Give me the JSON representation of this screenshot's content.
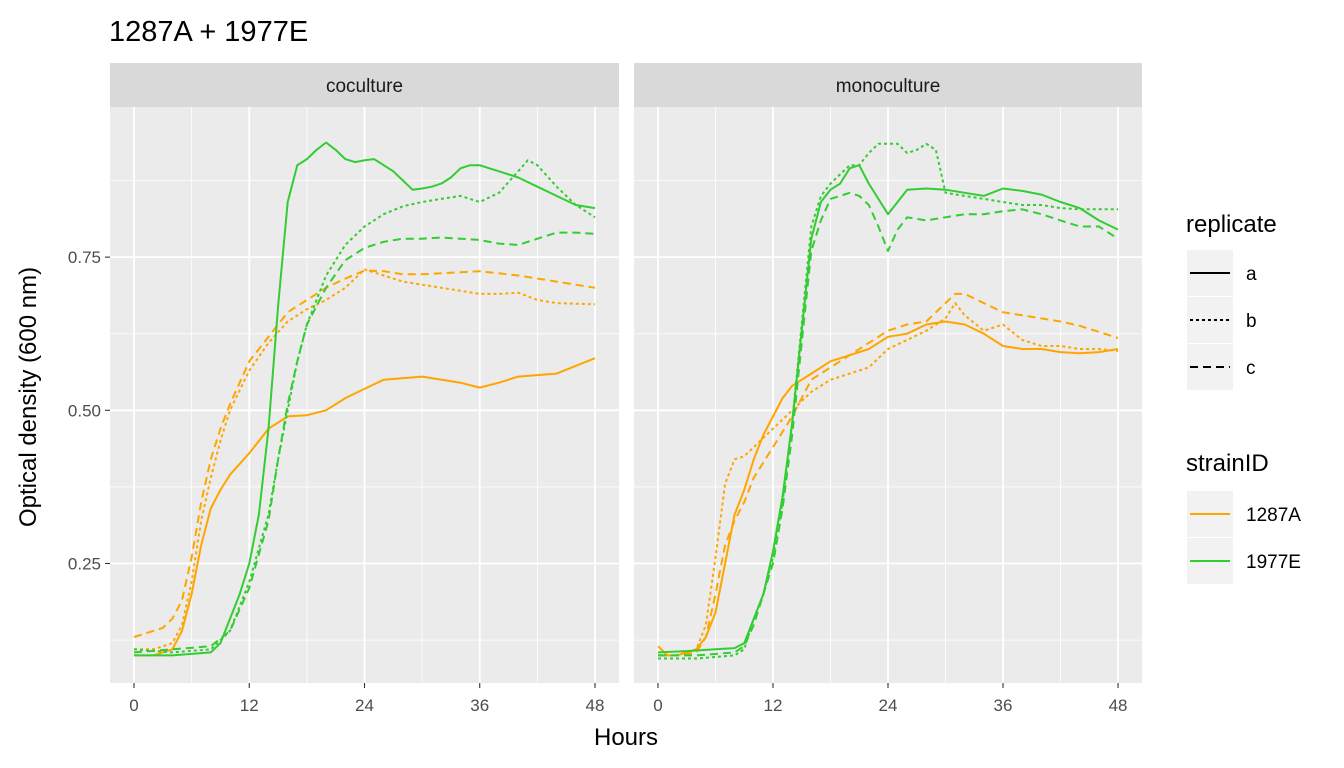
{
  "chart_data": {
    "type": "line",
    "title": "1287A + 1977E",
    "xlabel": "Hours",
    "ylabel": "Optical density (600 nm)",
    "xlim": [
      -2.5,
      50.5
    ],
    "ylim": [
      0.055,
      0.995
    ],
    "x_ticks": [
      0,
      12,
      24,
      36,
      48
    ],
    "x_tick_labels": [
      "0",
      "12",
      "24",
      "36",
      "48"
    ],
    "y_ticks": [
      0.25,
      0.5,
      0.75
    ],
    "y_tick_labels": [
      "0.25",
      "0.50",
      "0.75"
    ],
    "grid": true,
    "legend_position": "right",
    "legends": {
      "replicate": {
        "title": "replicate",
        "entries": [
          {
            "label": "a",
            "dash": "solid"
          },
          {
            "label": "b",
            "dash": "dotted"
          },
          {
            "label": "c",
            "dash": "dashed"
          }
        ]
      },
      "strainID": {
        "title": "strainID",
        "entries": [
          {
            "label": "1287A",
            "color": "#FFA500"
          },
          {
            "label": "1977E",
            "color": "#32CD32"
          }
        ]
      }
    },
    "panels": [
      {
        "strip": "coculture",
        "series": [
          {
            "strain": "1287A",
            "replicate": "a",
            "x": [
              0,
              2,
              4,
              5,
              6,
              7,
              8,
              9,
              10,
              12,
              14,
              16,
              18,
              20,
              22,
              24,
              26,
              30,
              34,
              36,
              38,
              40,
              44,
              48
            ],
            "y": [
              0.1,
              0.1,
              0.11,
              0.14,
              0.2,
              0.28,
              0.34,
              0.37,
              0.395,
              0.43,
              0.47,
              0.49,
              0.492,
              0.5,
              0.52,
              0.535,
              0.55,
              0.555,
              0.545,
              0.537,
              0.545,
              0.555,
              0.56,
              0.585
            ]
          },
          {
            "strain": "1287A",
            "replicate": "b",
            "x": [
              0,
              2,
              4,
              5,
              6,
              7,
              8,
              9,
              10,
              12,
              14,
              16,
              18,
              20,
              22,
              24,
              26,
              28,
              30,
              32,
              34,
              36,
              38,
              40,
              42,
              44,
              48
            ],
            "y": [
              0.11,
              0.11,
              0.12,
              0.15,
              0.22,
              0.32,
              0.39,
              0.45,
              0.5,
              0.565,
              0.61,
              0.645,
              0.665,
              0.68,
              0.7,
              0.73,
              0.72,
              0.71,
              0.705,
              0.7,
              0.695,
              0.69,
              0.69,
              0.692,
              0.68,
              0.675,
              0.673
            ]
          },
          {
            "strain": "1287A",
            "replicate": "c",
            "x": [
              0,
              1,
              3,
              4,
              5,
              6,
              7,
              8,
              9,
              10,
              12,
              14,
              16,
              18,
              20,
              22,
              24,
              26,
              28,
              30,
              36,
              40,
              44,
              48
            ],
            "y": [
              0.13,
              0.135,
              0.145,
              0.16,
              0.19,
              0.26,
              0.35,
              0.42,
              0.47,
              0.51,
              0.58,
              0.62,
              0.66,
              0.68,
              0.7,
              0.715,
              0.728,
              0.727,
              0.722,
              0.722,
              0.727,
              0.72,
              0.71,
              0.7
            ]
          },
          {
            "strain": "1977E",
            "replicate": "a",
            "x": [
              0,
              4,
              8,
              9,
              10,
              11,
              12,
              13,
              14,
              15,
              16,
              17,
              18,
              19,
              20,
              21,
              22,
              23,
              24,
              25,
              26,
              27,
              28,
              29,
              30,
              31,
              32,
              33,
              34,
              35,
              36,
              37,
              38,
              40,
              42,
              44,
              46,
              48
            ],
            "y": [
              0.1,
              0.1,
              0.105,
              0.12,
              0.16,
              0.2,
              0.25,
              0.33,
              0.47,
              0.67,
              0.84,
              0.9,
              0.91,
              0.925,
              0.937,
              0.925,
              0.91,
              0.905,
              0.908,
              0.91,
              0.9,
              0.89,
              0.875,
              0.86,
              0.862,
              0.865,
              0.87,
              0.88,
              0.895,
              0.9,
              0.9,
              0.895,
              0.89,
              0.88,
              0.865,
              0.85,
              0.835,
              0.83
            ]
          },
          {
            "strain": "1977E",
            "replicate": "b",
            "x": [
              0,
              4,
              8,
              10,
              12,
              14,
              15,
              16,
              17,
              18,
              20,
              22,
              24,
              26,
              28,
              30,
              32,
              34,
              36,
              38,
              40,
              41,
              42,
              44,
              46,
              48
            ],
            "y": [
              0.11,
              0.105,
              0.11,
              0.14,
              0.22,
              0.33,
              0.42,
              0.5,
              0.58,
              0.64,
              0.72,
              0.77,
              0.8,
              0.82,
              0.833,
              0.84,
              0.845,
              0.85,
              0.84,
              0.855,
              0.89,
              0.908,
              0.9,
              0.865,
              0.835,
              0.815
            ]
          },
          {
            "strain": "1977E",
            "replicate": "c",
            "x": [
              0,
              4,
              8,
              10,
              12,
              14,
              15,
              16,
              17,
              18,
              20,
              22,
              24,
              26,
              28,
              30,
              32,
              34,
              36,
              38,
              40,
              42,
              44,
              46,
              48
            ],
            "y": [
              0.105,
              0.11,
              0.115,
              0.14,
              0.21,
              0.32,
              0.42,
              0.51,
              0.58,
              0.64,
              0.7,
              0.745,
              0.765,
              0.775,
              0.78,
              0.78,
              0.782,
              0.78,
              0.778,
              0.772,
              0.77,
              0.78,
              0.79,
              0.79,
              0.788
            ]
          }
        ]
      },
      {
        "strip": "monoculture",
        "series": [
          {
            "strain": "1287A",
            "replicate": "a",
            "x": [
              0,
              1,
              2,
              3,
              4,
              5,
              6,
              7,
              8,
              9,
              10,
              11,
              12,
              13,
              14,
              16,
              18,
              20,
              22,
              24,
              26,
              28,
              30,
              32,
              34,
              36,
              38,
              40,
              42,
              44,
              46,
              48
            ],
            "y": [
              0.115,
              0.1,
              0.1,
              0.105,
              0.11,
              0.13,
              0.17,
              0.25,
              0.33,
              0.37,
              0.42,
              0.46,
              0.49,
              0.52,
              0.54,
              0.56,
              0.58,
              0.59,
              0.6,
              0.62,
              0.625,
              0.64,
              0.645,
              0.64,
              0.625,
              0.605,
              0.6,
              0.6,
              0.595,
              0.593,
              0.595,
              0.6
            ]
          },
          {
            "strain": "1287A",
            "replicate": "b",
            "x": [
              0,
              2,
              4,
              5,
              6,
              7,
              8,
              9,
              10,
              12,
              14,
              16,
              18,
              20,
              22,
              24,
              26,
              28,
              30,
              31,
              32,
              34,
              36,
              38,
              40,
              42,
              44,
              46,
              48
            ],
            "y": [
              0.1,
              0.1,
              0.11,
              0.15,
              0.26,
              0.38,
              0.42,
              0.425,
              0.44,
              0.47,
              0.5,
              0.53,
              0.55,
              0.56,
              0.57,
              0.6,
              0.615,
              0.63,
              0.65,
              0.675,
              0.655,
              0.63,
              0.64,
              0.615,
              0.605,
              0.605,
              0.6,
              0.6,
              0.597
            ]
          },
          {
            "strain": "1287A",
            "replicate": "c",
            "x": [
              0,
              2,
              4,
              5,
              6,
              7,
              8,
              9,
              10,
              12,
              14,
              16,
              18,
              20,
              22,
              24,
              26,
              28,
              30,
              31,
              32,
              34,
              36,
              38,
              40,
              42,
              44,
              46,
              48
            ],
            "y": [
              0.1,
              0.1,
              0.105,
              0.13,
              0.2,
              0.28,
              0.32,
              0.35,
              0.39,
              0.44,
              0.49,
              0.55,
              0.57,
              0.59,
              0.61,
              0.63,
              0.64,
              0.645,
              0.675,
              0.69,
              0.69,
              0.675,
              0.66,
              0.655,
              0.65,
              0.645,
              0.638,
              0.628,
              0.618
            ]
          },
          {
            "strain": "1977E",
            "replicate": "a",
            "x": [
              0,
              3,
              6,
              8,
              9,
              10,
              11,
              12,
              13,
              14,
              15,
              16,
              17,
              18,
              19,
              20,
              21,
              22,
              23,
              24,
              25,
              26,
              28,
              30,
              32,
              34,
              36,
              38,
              40,
              42,
              44,
              46,
              48
            ],
            "y": [
              0.105,
              0.107,
              0.11,
              0.112,
              0.12,
              0.16,
              0.2,
              0.27,
              0.36,
              0.48,
              0.63,
              0.78,
              0.84,
              0.86,
              0.87,
              0.895,
              0.9,
              0.87,
              0.845,
              0.82,
              0.84,
              0.86,
              0.862,
              0.86,
              0.855,
              0.85,
              0.862,
              0.858,
              0.852,
              0.84,
              0.83,
              0.81,
              0.795
            ]
          },
          {
            "strain": "1977E",
            "replicate": "b",
            "x": [
              0,
              4,
              8,
              9,
              10,
              11,
              12,
              13,
              14,
              15,
              16,
              17,
              18,
              19,
              20,
              21,
              22,
              23,
              24,
              25,
              26,
              27,
              28,
              29,
              30,
              32,
              34,
              36,
              38,
              40,
              42,
              44,
              46,
              48
            ],
            "y": [
              0.095,
              0.095,
              0.1,
              0.11,
              0.16,
              0.2,
              0.26,
              0.35,
              0.48,
              0.64,
              0.8,
              0.85,
              0.87,
              0.885,
              0.9,
              0.9,
              0.92,
              0.935,
              0.935,
              0.935,
              0.92,
              0.925,
              0.935,
              0.925,
              0.855,
              0.85,
              0.845,
              0.84,
              0.835,
              0.835,
              0.83,
              0.828,
              0.828,
              0.828
            ]
          },
          {
            "strain": "1977E",
            "replicate": "c",
            "x": [
              0,
              4,
              8,
              9,
              10,
              11,
              12,
              13,
              14,
              15,
              16,
              17,
              18,
              19,
              20,
              21,
              22,
              23,
              24,
              25,
              26,
              28,
              30,
              32,
              34,
              36,
              38,
              40,
              42,
              44,
              46,
              48
            ],
            "y": [
              0.1,
              0.1,
              0.105,
              0.115,
              0.15,
              0.2,
              0.25,
              0.34,
              0.46,
              0.61,
              0.76,
              0.81,
              0.845,
              0.85,
              0.855,
              0.85,
              0.835,
              0.8,
              0.76,
              0.795,
              0.815,
              0.81,
              0.815,
              0.82,
              0.82,
              0.825,
              0.828,
              0.82,
              0.81,
              0.8,
              0.8,
              0.78
            ]
          }
        ]
      }
    ]
  }
}
